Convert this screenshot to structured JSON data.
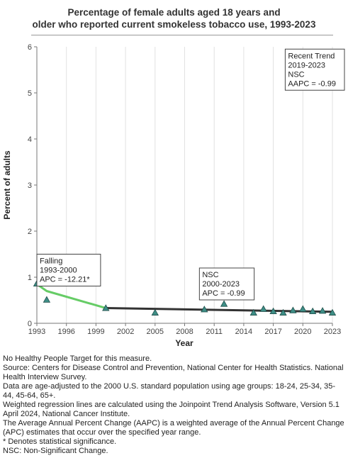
{
  "title_lines": [
    "Percentage of female adults aged 18 years and",
    "older who reported current smokeless tobacco use, 1993-2023"
  ],
  "chart_data": {
    "type": "scatter",
    "title": "Percentage of female adults aged 18 years and older who reported current smokeless tobacco use, 1993-2023",
    "xlabel": "Year",
    "ylabel": "Percent of adults",
    "xlim": [
      1993,
      2023
    ],
    "ylim": [
      0,
      6
    ],
    "x_ticks": [
      1993,
      1996,
      1999,
      2002,
      2005,
      2008,
      2011,
      2014,
      2017,
      2020,
      2023
    ],
    "y_ticks": [
      0,
      1,
      2,
      3,
      4,
      5,
      6
    ],
    "grid": "vertical",
    "observed": {
      "x": [
        1993,
        1994,
        2000,
        2005,
        2010,
        2012,
        2015,
        2016,
        2017,
        2018,
        2019,
        2020,
        2021,
        2022,
        2023
      ],
      "y": [
        0.86,
        0.51,
        0.33,
        0.23,
        0.3,
        0.42,
        0.23,
        0.31,
        0.26,
        0.23,
        0.28,
        0.31,
        0.26,
        0.27,
        0.23
      ]
    },
    "trend_segments": [
      {
        "x": [
          1993,
          1994,
          2000
        ],
        "y": [
          0.85,
          0.7,
          0.33
        ],
        "color": "#66cc66"
      },
      {
        "x": [
          2000,
          2023
        ],
        "y": [
          0.33,
          0.25
        ],
        "color": "#333333"
      }
    ],
    "marker_color": "#3e8e86",
    "annotations": [
      {
        "lines": [
          "Falling",
          "1993-2000",
          "APC = -12.21*"
        ],
        "anchor_x": 1993,
        "anchor_y": 1.5
      },
      {
        "lines": [
          "NSC",
          "2000-2023",
          "APC = -0.99"
        ],
        "anchor_x": 2009.5,
        "anchor_y": 1.2
      },
      {
        "lines": [
          "Recent Trend",
          "2019-2023",
          "NSC",
          "AAPC = -0.99"
        ],
        "anchor_x": 2018.9,
        "anchor_y": 5.95
      }
    ]
  },
  "notes": [
    "No Healthy People Target for this measure.",
    "Source: Centers for Disease Control and Prevention, National Center for Health Statistics. National Health Interview Survey.",
    "Data are age-adjusted to the 2000 U.S. standard population using age groups: 18-24, 25-34, 35-44, 45-64, 65+.",
    "Weighted regression lines are calculated using the Joinpoint Trend Analysis Software, Version 5.1 April 2024, National Cancer Institute.",
    "The Average Annual Percent Change (AAPC) is a weighted average of the Annual Percent Change (APC) estimates that occur over the specified year range.",
    "* Denotes statistical significance.",
    "NSC: Non-Significant Change."
  ]
}
